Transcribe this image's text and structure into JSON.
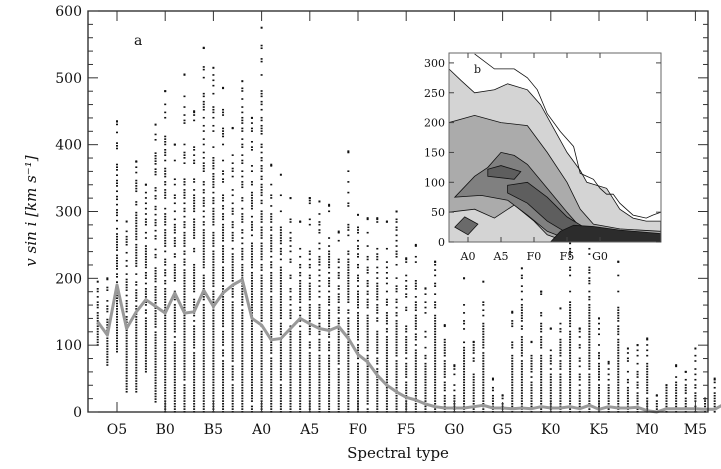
{
  "chart_data": [
    {
      "type": "scatter",
      "panel_label": "a",
      "xlabel": "Spectral type",
      "ylabel": "v sin i [km s⁻¹]",
      "ylim": [
        0,
        600
      ],
      "xlim_subtype_index": [
        -3,
        66.3
      ],
      "x_ticks": [
        {
          "label": "O5",
          "index": 0
        },
        {
          "label": "B0",
          "index": 5
        },
        {
          "label": "B5",
          "index": 10
        },
        {
          "label": "A0",
          "index": 15
        },
        {
          "label": "A5",
          "index": 20
        },
        {
          "label": "F0",
          "index": 25
        },
        {
          "label": "F5",
          "index": 30
        },
        {
          "label": "G0",
          "index": 35
        },
        {
          "label": "G5",
          "index": 40
        },
        {
          "label": "K0",
          "index": 45
        },
        {
          "label": "K5",
          "index": 50
        },
        {
          "label": "M0",
          "index": 55
        },
        {
          "label": "M5",
          "index": 60
        }
      ],
      "y_ticks": [
        0,
        100,
        200,
        300,
        400,
        500,
        600
      ],
      "columns": [
        {
          "i": -2,
          "min": 100,
          "max": 195
        },
        {
          "i": -1,
          "min": 70,
          "max": 200
        },
        {
          "i": 0,
          "min": 90,
          "max": 435
        },
        {
          "i": 1,
          "min": 30,
          "max": 285
        },
        {
          "i": 2,
          "min": 30,
          "max": 375
        },
        {
          "i": 3,
          "min": 60,
          "max": 340
        },
        {
          "i": 4,
          "min": 15,
          "max": 430
        },
        {
          "i": 5,
          "min": 0,
          "max": 480
        },
        {
          "i": 6,
          "min": 0,
          "max": 400
        },
        {
          "i": 7,
          "min": 0,
          "max": 505
        },
        {
          "i": 8,
          "min": 0,
          "max": 450
        },
        {
          "i": 9,
          "min": 0,
          "max": 545
        },
        {
          "i": 10,
          "min": 0,
          "max": 515
        },
        {
          "i": 11,
          "min": 0,
          "max": 485
        },
        {
          "i": 12,
          "min": 0,
          "max": 425
        },
        {
          "i": 13,
          "min": 0,
          "max": 495
        },
        {
          "i": 14,
          "min": 0,
          "max": 440
        },
        {
          "i": 15,
          "min": 0,
          "max": 575
        },
        {
          "i": 16,
          "min": 0,
          "max": 370
        },
        {
          "i": 17,
          "min": 0,
          "max": 355
        },
        {
          "i": 18,
          "min": 0,
          "max": 320
        },
        {
          "i": 19,
          "min": 0,
          "max": 285
        },
        {
          "i": 20,
          "min": 0,
          "max": 320
        },
        {
          "i": 21,
          "min": 0,
          "max": 315
        },
        {
          "i": 22,
          "min": 0,
          "max": 310
        },
        {
          "i": 23,
          "min": 0,
          "max": 270
        },
        {
          "i": 24,
          "min": 0,
          "max": 390
        },
        {
          "i": 25,
          "min": 0,
          "max": 295
        },
        {
          "i": 26,
          "min": 0,
          "max": 290
        },
        {
          "i": 27,
          "min": 0,
          "max": 290
        },
        {
          "i": 28,
          "min": 0,
          "max": 285
        },
        {
          "i": 29,
          "min": 0,
          "max": 300
        },
        {
          "i": 30,
          "min": 0,
          "max": 230
        },
        {
          "i": 31,
          "min": 0,
          "max": 250
        },
        {
          "i": 32,
          "min": 0,
          "max": 185
        },
        {
          "i": 33,
          "min": 0,
          "max": 225
        },
        {
          "i": 34,
          "min": 0,
          "max": 130
        },
        {
          "i": 35,
          "min": 0,
          "max": 70
        },
        {
          "i": 36,
          "min": 0,
          "max": 200
        },
        {
          "i": 37,
          "min": 0,
          "max": 105
        },
        {
          "i": 38,
          "min": 0,
          "max": 195
        },
        {
          "i": 39,
          "min": 0,
          "max": 50
        },
        {
          "i": 40,
          "min": 0,
          "max": 25
        },
        {
          "i": 41,
          "min": 0,
          "max": 150
        },
        {
          "i": 42,
          "min": 0,
          "max": 215
        },
        {
          "i": 43,
          "min": 0,
          "max": 105
        },
        {
          "i": 44,
          "min": 0,
          "max": 180
        },
        {
          "i": 45,
          "min": 0,
          "max": 125
        },
        {
          "i": 46,
          "min": 0,
          "max": 155
        },
        {
          "i": 47,
          "min": 0,
          "max": 320
        },
        {
          "i": 48,
          "min": 0,
          "max": 125
        },
        {
          "i": 49,
          "min": 0,
          "max": 280
        },
        {
          "i": 50,
          "min": 0,
          "max": 140
        },
        {
          "i": 51,
          "min": 0,
          "max": 75
        },
        {
          "i": 52,
          "min": 0,
          "max": 225
        },
        {
          "i": 53,
          "min": 0,
          "max": 95
        },
        {
          "i": 54,
          "min": 0,
          "max": 100
        },
        {
          "i": 55,
          "min": 0,
          "max": 110
        },
        {
          "i": 56,
          "min": 0,
          "max": 25
        },
        {
          "i": 57,
          "min": 0,
          "max": 40
        },
        {
          "i": 58,
          "min": 0,
          "max": 70
        },
        {
          "i": 59,
          "min": 0,
          "max": 60
        },
        {
          "i": 60,
          "min": 0,
          "max": 95
        },
        {
          "i": 61,
          "min": 0,
          "max": 20
        },
        {
          "i": 62,
          "min": 0,
          "max": 50
        },
        {
          "i": 63,
          "min": 0,
          "max": 45
        },
        {
          "i": 64,
          "min": 0,
          "max": 20
        },
        {
          "i": 65,
          "min": 0,
          "max": 10
        }
      ],
      "mean_line": {
        "start_index": -2,
        "values": [
          135,
          115,
          190,
          125,
          150,
          168,
          158,
          148,
          178,
          148,
          150,
          182,
          158,
          178,
          190,
          198,
          140,
          130,
          108,
          110,
          125,
          140,
          132,
          125,
          122,
          128,
          110,
          86,
          75,
          55,
          40,
          30,
          22,
          18,
          12,
          8,
          6,
          6,
          6,
          8,
          10,
          6,
          6,
          5,
          6,
          5,
          8,
          6,
          6,
          8,
          5,
          10,
          4,
          8,
          6,
          6,
          7,
          2,
          0,
          5,
          5,
          5,
          5,
          4,
          4,
          12,
          5
        ],
        "color": "#999999"
      }
    },
    {
      "type": "contour",
      "panel_label": "b",
      "ylim": [
        0,
        310
      ],
      "xlim_subtype_index": [
        12.1,
        44.2
      ],
      "x_ticks": [
        {
          "label": "A0",
          "index": 15
        },
        {
          "label": "A5",
          "index": 20
        },
        {
          "label": "F0",
          "index": 25
        },
        {
          "label": "F5",
          "index": 30
        },
        {
          "label": "G0",
          "index": 35
        }
      ],
      "y_ticks": [
        0,
        50,
        100,
        150,
        200,
        250,
        300
      ],
      "levels": [
        {
          "color": "#d4d4d4",
          "polygon": [
            [
              12.1,
              290
            ],
            [
              14,
              270
            ],
            [
              16,
              250
            ],
            [
              19,
              255
            ],
            [
              21,
              265
            ],
            [
              24,
              255
            ],
            [
              26,
              230
            ],
            [
              28,
              190
            ],
            [
              30,
              150
            ],
            [
              32,
              120
            ],
            [
              33,
              100
            ],
            [
              36,
              90
            ],
            [
              38,
              55
            ],
            [
              40,
              40
            ],
            [
              42,
              35
            ],
            [
              44.2,
              35
            ],
            [
              44.2,
              0
            ],
            [
              12.1,
              0
            ]
          ]
        },
        {
          "color": "#ababab",
          "polygon": [
            [
              12.1,
              200
            ],
            [
              16,
              212
            ],
            [
              20,
              200
            ],
            [
              24,
              195
            ],
            [
              27,
              150
            ],
            [
              30,
              100
            ],
            [
              32,
              55
            ],
            [
              34,
              30
            ],
            [
              38,
              22
            ],
            [
              44.2,
              18
            ],
            [
              44.2,
              0
            ],
            [
              30,
              0
            ],
            [
              27,
              12
            ],
            [
              25,
              35
            ],
            [
              22,
              62
            ],
            [
              19,
              40
            ],
            [
              16,
              55
            ],
            [
              12.1,
              50
            ]
          ]
        },
        {
          "color": "#808080",
          "polygon": [
            [
              13,
              75
            ],
            [
              16,
              110
            ],
            [
              18,
              125
            ],
            [
              20,
              150
            ],
            [
              22,
              145
            ],
            [
              24,
              130
            ],
            [
              27,
              90
            ],
            [
              30,
              50
            ],
            [
              32,
              25
            ],
            [
              34,
              15
            ],
            [
              30,
              5
            ],
            [
              27,
              18
            ],
            [
              24,
              45
            ],
            [
              21,
              70
            ],
            [
              17,
              78
            ]
          ]
        },
        {
          "color": "#5e5e5e",
          "polygon": [
            [
              18,
              122
            ],
            [
              20,
              128
            ],
            [
              23,
              118
            ],
            [
              22,
              105
            ],
            [
              18,
              110
            ]
          ]
        },
        {
          "color": "#5e5e5e",
          "polygon": [
            [
              21,
              95
            ],
            [
              24,
              100
            ],
            [
              27,
              75
            ],
            [
              30,
              42
            ],
            [
              33,
              22
            ],
            [
              30,
              15
            ],
            [
              27,
              35
            ],
            [
              24,
              65
            ],
            [
              21,
              82
            ]
          ]
        },
        {
          "color": "#6a6a6a",
          "polygon": [
            [
              13,
              25
            ],
            [
              14.5,
              42
            ],
            [
              16.5,
              30
            ],
            [
              15,
              12
            ]
          ]
        },
        {
          "color": "#2c2c2c",
          "polygon": [
            [
              27.5,
              0
            ],
            [
              29,
              18
            ],
            [
              31,
              28
            ],
            [
              34,
              26
            ],
            [
              38,
              20
            ],
            [
              44.2,
              14
            ],
            [
              44.2,
              0
            ]
          ]
        }
      ],
      "outer_line": [
        [
          16,
          315
        ],
        [
          19,
          290
        ],
        [
          22,
          290
        ],
        [
          24,
          275
        ],
        [
          25.5,
          255
        ],
        [
          27,
          215
        ],
        [
          29,
          185
        ],
        [
          31,
          160
        ],
        [
          32,
          115
        ],
        [
          34,
          105
        ],
        [
          35,
          90
        ],
        [
          36,
          80
        ],
        [
          37,
          80
        ],
        [
          38,
          65
        ],
        [
          40,
          45
        ],
        [
          42,
          40
        ],
        [
          43,
          45
        ],
        [
          44.2,
          50
        ]
      ]
    }
  ]
}
